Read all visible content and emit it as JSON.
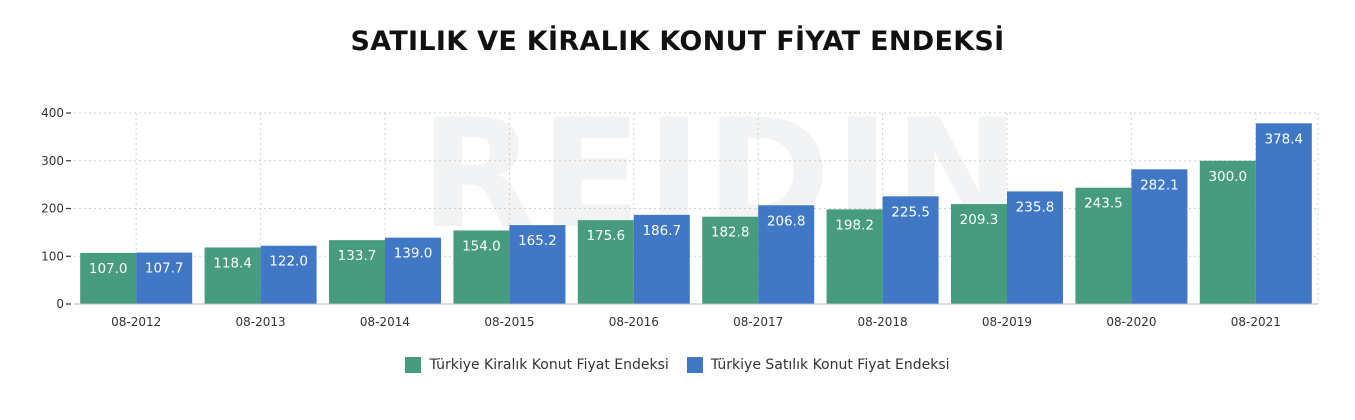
{
  "title": "SATILIK VE KİRALIK KONUT FİYAT ENDEKSİ",
  "watermark": "REIDIN",
  "chart_data": {
    "type": "bar",
    "title": "SATILIK VE KİRALIK KONUT FİYAT ENDEKSİ",
    "xlabel": "",
    "ylabel": "",
    "ylim": [
      0,
      400
    ],
    "yticks": [
      0,
      100,
      200,
      300,
      400
    ],
    "grid": true,
    "legend_position": "bottom",
    "categories": [
      "08-2012",
      "08-2013",
      "08-2014",
      "08-2015",
      "08-2016",
      "08-2017",
      "08-2018",
      "08-2019",
      "08-2020",
      "08-2021"
    ],
    "series": [
      {
        "name": "Türkiye Kiralık Konut Fiyat Endeksi",
        "color": "#479b7e",
        "values": [
          107.0,
          118.4,
          133.7,
          154.0,
          175.6,
          182.8,
          198.2,
          209.3,
          243.5,
          300.0
        ]
      },
      {
        "name": "Türkiye Satılık Konut Fiyat Endeksi",
        "color": "#4078c6",
        "values": [
          107.7,
          122.0,
          139.0,
          165.2,
          186.7,
          206.8,
          225.5,
          235.8,
          282.1,
          378.4
        ]
      }
    ]
  }
}
